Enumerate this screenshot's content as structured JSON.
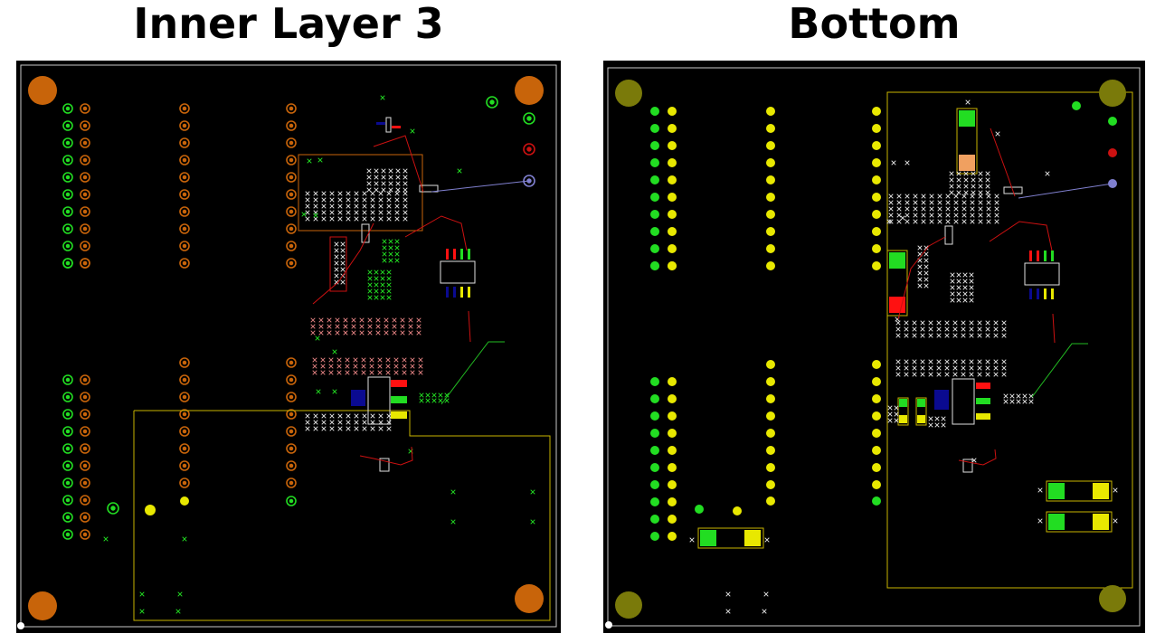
{
  "panels": {
    "left": {
      "title": "Inner Layer 3"
    },
    "right": {
      "title": "Bottom"
    }
  },
  "colors": {
    "background": "#000000",
    "outline": "#c8c8c8",
    "copper_orange": "#c8640a",
    "pad_green": "#22dd22",
    "pad_yellow": "#e8e800",
    "pad_olive": "#7a7a0a",
    "silk_yellow": "#c8b400",
    "trace_red": "#cc1111",
    "trace_blue": "#8080d0",
    "trace_green": "#22bb22",
    "via_white": "#e0e0e0",
    "pad_red": "#ff1111",
    "pad_blue": "#0a0a90",
    "pad_peach": "#f0a060"
  }
}
